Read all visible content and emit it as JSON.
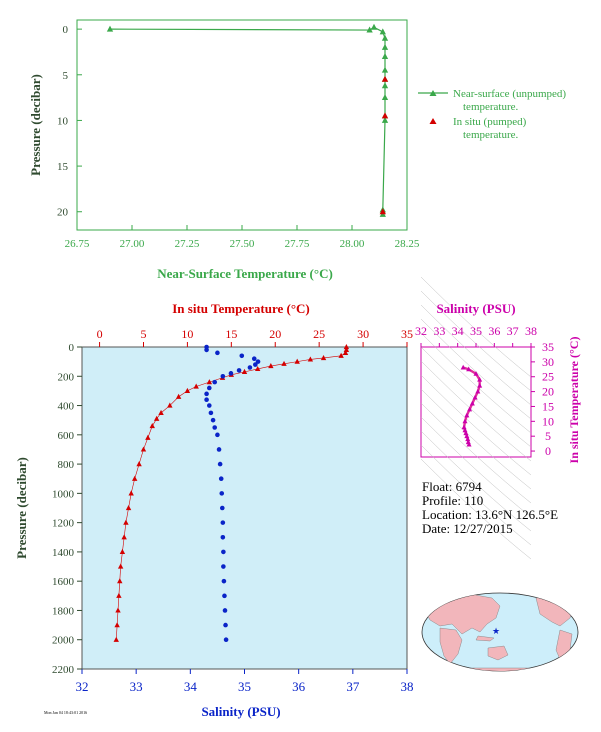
{
  "chart_data": [
    {
      "type": "line",
      "xlabel": "Near-Surface Temperature (°C)",
      "ylabel": "Pressure (decibar)",
      "xlim": [
        26.75,
        28.25
      ],
      "ylim": [
        22,
        -1
      ],
      "xticks": [
        "26.75",
        "27.00",
        "27.25",
        "27.50",
        "27.75",
        "28.00",
        "28.25"
      ],
      "yticks": [
        "0",
        "5",
        "10",
        "15",
        "20"
      ],
      "legend": [
        "Near-surface (unpumped)",
        "temperature.",
        "In situ (pumped)",
        "temperature."
      ],
      "series": [
        {
          "name": "Near-surface (unpumped) temperature.",
          "points": [
            [
              26.9,
              0.0
            ],
            [
              28.08,
              0.1
            ],
            [
              28.1,
              -0.2
            ],
            [
              28.14,
              0.3
            ],
            [
              28.15,
              1.0
            ],
            [
              28.15,
              2.0
            ],
            [
              28.15,
              3.0
            ],
            [
              28.15,
              4.5
            ],
            [
              28.15,
              5.5
            ],
            [
              28.15,
              6.2
            ],
            [
              28.15,
              7.5
            ],
            [
              28.15,
              9.5
            ],
            [
              28.15,
              10.0
            ],
            [
              28.14,
              19.8
            ],
            [
              28.14,
              20.3
            ]
          ]
        },
        {
          "name": "In situ (pumped) temperature.",
          "points": [
            [
              28.15,
              5.5
            ],
            [
              28.15,
              9.5
            ],
            [
              28.14,
              20.0
            ]
          ]
        }
      ]
    },
    {
      "type": "line",
      "top_label": "In situ Temperature (°C)",
      "bottom_label": "Salinity (PSU)",
      "ylabel": "Pressure (decibar)",
      "temp_lim": [
        -2,
        35
      ],
      "sal_lim": [
        32,
        38
      ],
      "ylim": [
        2200,
        0
      ],
      "temp_ticks": [
        "0",
        "5",
        "10",
        "15",
        "20",
        "25",
        "30",
        "35"
      ],
      "sal_ticks": [
        "32",
        "33",
        "34",
        "35",
        "36",
        "37",
        "38"
      ],
      "yticks": [
        "0",
        "200",
        "400",
        "600",
        "800",
        "1000",
        "1200",
        "1400",
        "1600",
        "1800",
        "2000",
        "2200"
      ],
      "temperature": {
        "name": "In situ Temperature",
        "points": [
          [
            28.1,
            0
          ],
          [
            28.1,
            20
          ],
          [
            28.0,
            40
          ],
          [
            27.5,
            60
          ],
          [
            25.5,
            75
          ],
          [
            24.0,
            85
          ],
          [
            22.5,
            100
          ],
          [
            21.0,
            115
          ],
          [
            19.5,
            130
          ],
          [
            18.0,
            150
          ],
          [
            16.5,
            170
          ],
          [
            15.0,
            190
          ],
          [
            14.0,
            210
          ],
          [
            12.5,
            240
          ],
          [
            11.0,
            270
          ],
          [
            10.0,
            300
          ],
          [
            9.0,
            340
          ],
          [
            8.0,
            400
          ],
          [
            7.0,
            450
          ],
          [
            6.5,
            490
          ],
          [
            6.0,
            540
          ],
          [
            5.5,
            620
          ],
          [
            5.0,
            700
          ],
          [
            4.5,
            800
          ],
          [
            4.0,
            900
          ],
          [
            3.6,
            1000
          ],
          [
            3.3,
            1100
          ],
          [
            3.0,
            1200
          ],
          [
            2.8,
            1300
          ],
          [
            2.6,
            1400
          ],
          [
            2.4,
            1500
          ],
          [
            2.3,
            1600
          ],
          [
            2.2,
            1700
          ],
          [
            2.1,
            1800
          ],
          [
            2.0,
            1900
          ],
          [
            1.9,
            2000
          ]
        ]
      },
      "salinity": {
        "name": "Salinity",
        "points": [
          [
            34.3,
            0
          ],
          [
            34.3,
            20
          ],
          [
            34.5,
            40
          ],
          [
            34.95,
            60
          ],
          [
            35.18,
            80
          ],
          [
            35.25,
            100
          ],
          [
            35.2,
            120
          ],
          [
            35.1,
            140
          ],
          [
            34.9,
            160
          ],
          [
            34.75,
            180
          ],
          [
            34.6,
            200
          ],
          [
            34.45,
            240
          ],
          [
            34.35,
            280
          ],
          [
            34.3,
            320
          ],
          [
            34.3,
            360
          ],
          [
            34.35,
            400
          ],
          [
            34.38,
            450
          ],
          [
            34.42,
            500
          ],
          [
            34.45,
            550
          ],
          [
            34.5,
            600
          ],
          [
            34.53,
            700
          ],
          [
            34.55,
            800
          ],
          [
            34.57,
            900
          ],
          [
            34.58,
            1000
          ],
          [
            34.59,
            1100
          ],
          [
            34.6,
            1200
          ],
          [
            34.6,
            1300
          ],
          [
            34.61,
            1400
          ],
          [
            34.61,
            1500
          ],
          [
            34.62,
            1600
          ],
          [
            34.63,
            1700
          ],
          [
            34.64,
            1800
          ],
          [
            34.65,
            1900
          ],
          [
            34.66,
            2000
          ]
        ]
      }
    },
    {
      "type": "scatter",
      "title": "Salinity (PSU)",
      "ylabel": "In situ Temperature (°C)",
      "xlim": [
        32,
        38
      ],
      "ylim": [
        -2,
        35
      ],
      "xticks": [
        "32",
        "33",
        "34",
        "35",
        "36",
        "37",
        "38"
      ],
      "yticks": [
        "0",
        "5",
        "10",
        "15",
        "20",
        "25",
        "30",
        "35"
      ],
      "points": [
        [
          34.3,
          28.1
        ],
        [
          34.6,
          27.5
        ],
        [
          35.0,
          26.0
        ],
        [
          35.2,
          24.0
        ],
        [
          35.2,
          22.0
        ],
        [
          35.1,
          20.0
        ],
        [
          34.95,
          18.0
        ],
        [
          34.8,
          16.0
        ],
        [
          34.65,
          14.0
        ],
        [
          34.5,
          12.0
        ],
        [
          34.4,
          10.0
        ],
        [
          34.35,
          8.0
        ],
        [
          34.4,
          7.0
        ],
        [
          34.45,
          6.0
        ],
        [
          34.5,
          5.0
        ],
        [
          34.55,
          4.0
        ],
        [
          34.58,
          3.0
        ],
        [
          34.62,
          2.2
        ]
      ]
    }
  ],
  "info": {
    "float": "Float:  6794",
    "profile": "Profile:  110",
    "location": "Location:  13.6°N  126.5°E",
    "date": "Date:  12/27/2015"
  },
  "footer": "Mon Jan 04 18:43:01 2016",
  "colors": {
    "green": "#3aa84a",
    "red": "#d40000",
    "blue": "#0a24c8",
    "magenta": "#cc00aa",
    "panel": "#d0eef8"
  }
}
